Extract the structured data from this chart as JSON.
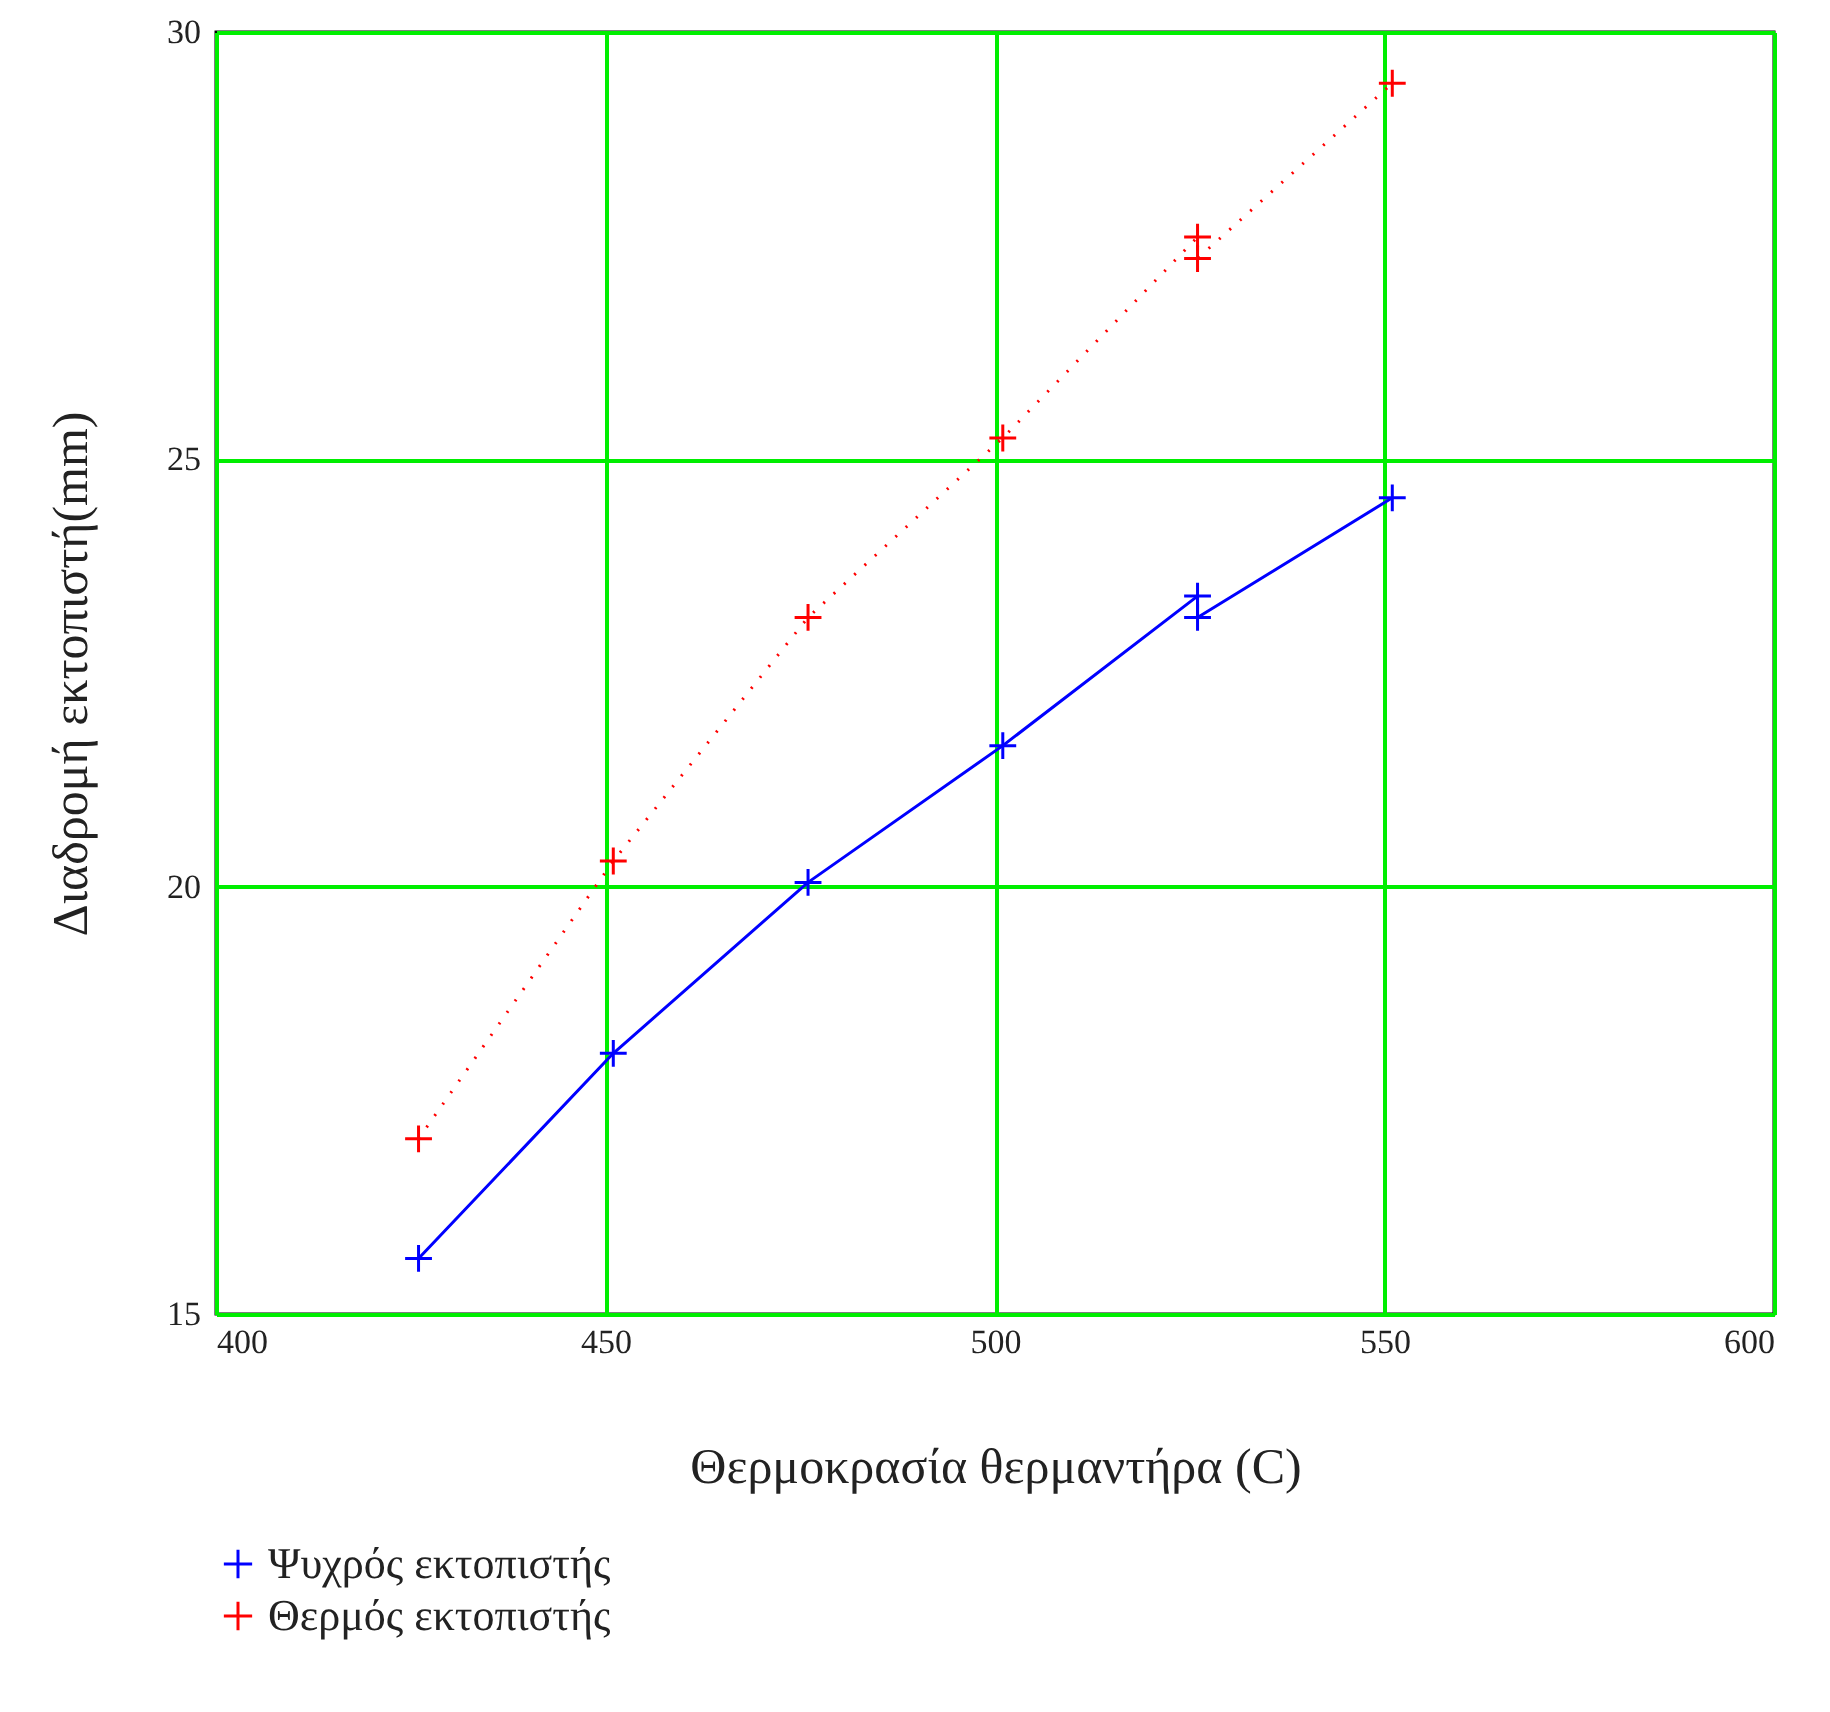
{
  "chart_data": {
    "type": "line",
    "xlabel": "Θερμοκρασία θερμαντήρα (C)",
    "ylabel": "Διαδρομή εκτοπιστή(mm)",
    "xlim": [
      400,
      600
    ],
    "xticks": [
      400,
      450,
      500,
      550,
      600
    ],
    "ylim": [
      15,
      30
    ],
    "yticks": [
      15,
      20,
      25,
      30
    ],
    "grid": true,
    "legend": "bottom left",
    "series": [
      {
        "name": "Ψυχρός εκτοπιστής",
        "color": "#0000ff",
        "marker": "cross",
        "line_style": "solid",
        "x": [
          426,
          451,
          476,
          501,
          526,
          526,
          551
        ],
        "values": [
          15.65,
          18.05,
          20.05,
          21.65,
          23.4,
          23.15,
          24.55
        ]
      },
      {
        "name": "Θερμός εκτοπιστής",
        "color": "#ff0000",
        "marker": "cross",
        "line_style": "dotted",
        "x": [
          426,
          451,
          476,
          501,
          526,
          526,
          551
        ],
        "values": [
          17.05,
          20.3,
          23.15,
          25.25,
          27.6,
          27.35,
          29.4
        ]
      }
    ]
  }
}
